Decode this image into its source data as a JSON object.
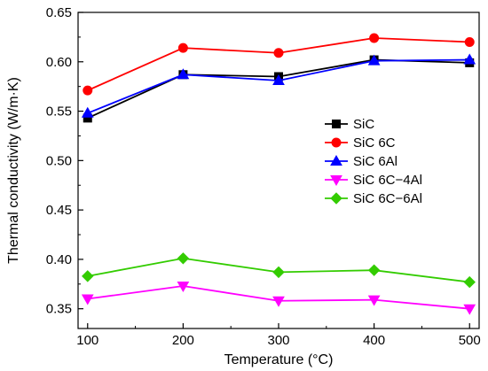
{
  "chart_data": {
    "type": "line",
    "title": "",
    "xlabel": "Temperature (°C)",
    "ylabel": "Thermal conductivity (W/m·K)",
    "xlim": [
      90,
      510
    ],
    "ylim": [
      0.33,
      0.65
    ],
    "xticks": [
      100,
      200,
      300,
      400,
      500
    ],
    "yticks": [
      0.35,
      0.4,
      0.45,
      0.5,
      0.55,
      0.6,
      0.65
    ],
    "x": [
      100,
      200,
      300,
      400,
      500
    ],
    "grid": false,
    "legend_position": "right",
    "series": [
      {
        "name": "SiC",
        "values": [
          0.543,
          0.587,
          0.585,
          0.602,
          0.599
        ],
        "color": "#000000",
        "marker": "square"
      },
      {
        "name": "SiC 6C",
        "values": [
          0.571,
          0.614,
          0.609,
          0.624,
          0.62
        ],
        "color": "#ff0000",
        "marker": "circle"
      },
      {
        "name": "SiC 6Al",
        "values": [
          0.548,
          0.587,
          0.581,
          0.601,
          0.602
        ],
        "color": "#0000ff",
        "marker": "triangle-up"
      },
      {
        "name": "SiC 6C−4Al",
        "values": [
          0.36,
          0.373,
          0.358,
          0.359,
          0.35
        ],
        "color": "#ff00ff",
        "marker": "triangle-down"
      },
      {
        "name": "SiC 6C−6Al",
        "values": [
          0.383,
          0.401,
          0.387,
          0.389,
          0.377
        ],
        "color": "#33cc00",
        "marker": "diamond"
      }
    ]
  }
}
